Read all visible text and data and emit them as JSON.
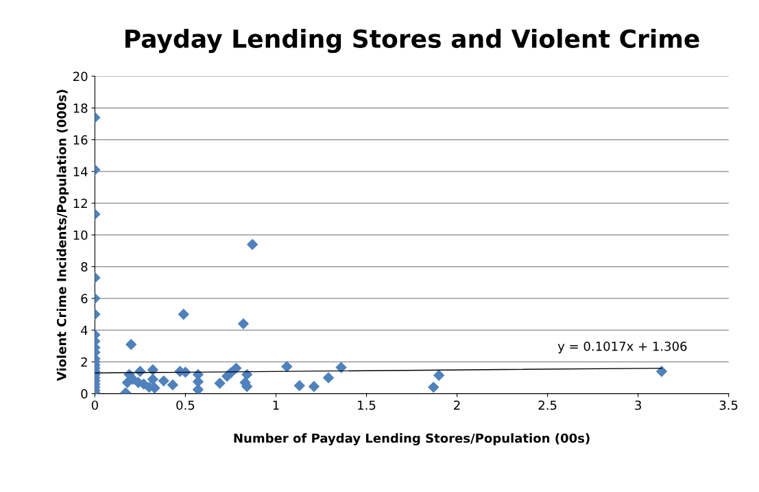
{
  "chart_data": {
    "type": "scatter",
    "title": "Payday Lending Stores and Violent Crime",
    "xlabel": "Number of Payday Lending Stores/Population (00s)",
    "ylabel": "Violent Crime Incidents/Population (000s)",
    "xlim": [
      0,
      3.5
    ],
    "xticks": [
      0,
      0.5,
      1,
      1.5,
      2,
      2.5,
      3,
      3.5
    ],
    "ylim": [
      0,
      20
    ],
    "yticks": [
      0,
      2,
      4,
      6,
      8,
      10,
      12,
      14,
      16,
      18,
      20
    ],
    "grid": "y",
    "marker": "diamond",
    "legend": false,
    "annotations": [
      "y = 0.1017x + 1.306"
    ],
    "series": [
      {
        "color": "#4f81bd",
        "x": [
          0,
          0,
          0,
          0,
          0,
          0,
          0,
          0,
          0,
          0,
          0,
          0,
          0,
          0,
          0,
          0,
          0,
          0,
          0,
          0,
          0,
          0,
          0.17,
          0.18,
          0.19,
          0.2,
          0.21,
          0.24,
          0.25,
          0.27,
          0.3,
          0.32,
          0.32,
          0.33,
          0.38,
          0.43,
          0.47,
          0.49,
          0.5,
          0.57,
          0.57,
          0.57,
          0.69,
          0.73,
          0.75,
          0.78,
          0.82,
          0.83,
          0.84,
          0.84,
          0.87,
          1.06,
          1.13,
          1.21,
          1.29,
          1.36,
          1.87,
          1.9,
          3.13
        ],
        "values": [
          17.4,
          14.1,
          11.3,
          7.3,
          6.0,
          5.0,
          3.7,
          3.3,
          2.9,
          2.6,
          2.2,
          2.0,
          1.8,
          1.6,
          1.4,
          1.2,
          1.0,
          0.8,
          0.6,
          0.4,
          0.2,
          0.05,
          0.05,
          0.7,
          1.2,
          3.1,
          0.9,
          0.7,
          1.4,
          0.6,
          0.4,
          1.5,
          0.9,
          0.35,
          0.8,
          0.55,
          1.4,
          5.0,
          1.35,
          1.2,
          0.75,
          0.25,
          0.65,
          1.1,
          1.3,
          1.6,
          4.4,
          0.7,
          1.2,
          0.45,
          9.4,
          1.7,
          0.5,
          0.45,
          1.0,
          1.65,
          0.4,
          1.15,
          1.4
        ]
      },
      {
        "type": "line",
        "color": "#000000",
        "marker": "none",
        "x": [
          0,
          3.13
        ],
        "values": [
          1.3,
          1.6
        ]
      }
    ]
  }
}
